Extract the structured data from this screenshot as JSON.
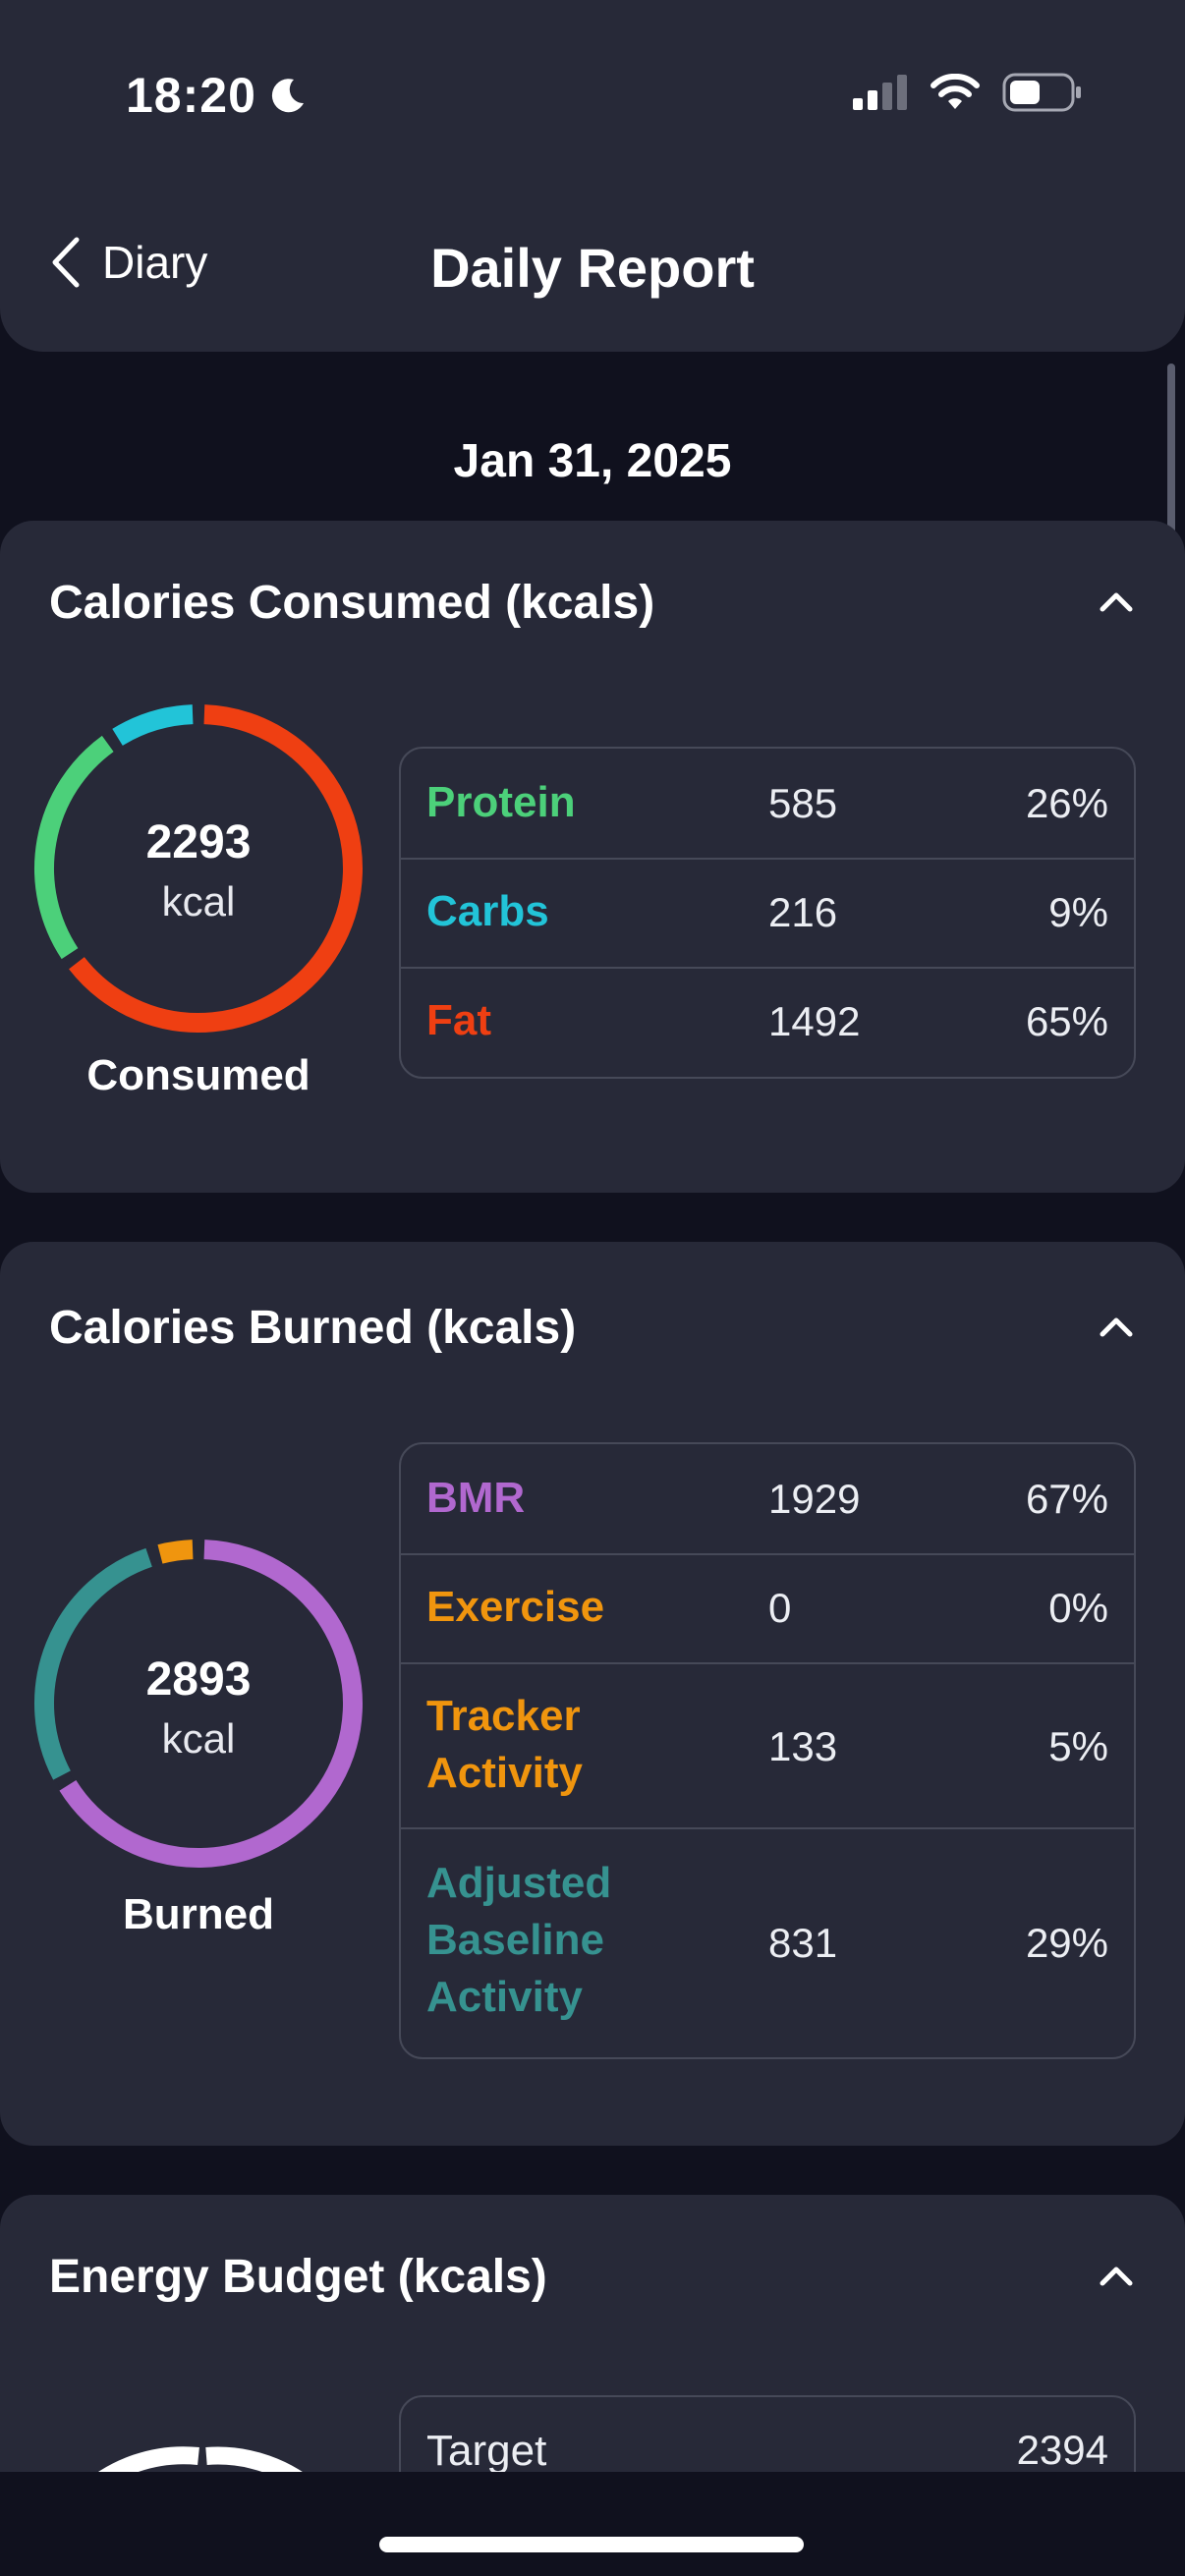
{
  "status_bar": {
    "time": "18:20"
  },
  "header": {
    "back_label": "Diary",
    "title": "Daily Report"
  },
  "date": "Jan 31, 2025",
  "colors": {
    "protein": "#4cd07a",
    "carbs": "#22c4d8",
    "fat": "#ef3f12",
    "bmr": "#b168cf",
    "exercise": "#f0950e",
    "tracker": "#f0950e",
    "adjusted": "#369290",
    "card_bg": "#272938",
    "page_bg": "#10111e"
  },
  "consumed": {
    "title": "Calories Consumed (kcals)",
    "total": "2293",
    "unit": "kcal",
    "caption": "Consumed",
    "rows": [
      {
        "name": "Protein",
        "value": "585",
        "pct": "26%",
        "fraction": 0.255
      },
      {
        "name": "Carbs",
        "value": "216",
        "pct": "9%",
        "fraction": 0.094
      },
      {
        "name": "Fat",
        "value": "1492",
        "pct": "65%",
        "fraction": 0.651
      }
    ]
  },
  "burned": {
    "title": "Calories Burned (kcals)",
    "total": "2893",
    "unit": "kcal",
    "caption": "Burned",
    "rows": [
      {
        "name": "BMR",
        "value": "1929",
        "pct": "67%",
        "fraction": 0.667
      },
      {
        "name": "Exercise",
        "value": "0",
        "pct": "0%",
        "fraction": 0.0
      },
      {
        "name": "Tracker Activity",
        "name_lines": [
          "Tracker",
          "Activity"
        ],
        "value": "133",
        "pct": "5%",
        "fraction": 0.046
      },
      {
        "name": "Adjusted Baseline Activity",
        "name_lines": [
          "Adjusted",
          "Baseline",
          "Activity"
        ],
        "value": "831",
        "pct": "29%",
        "fraction": 0.287
      }
    ]
  },
  "budget": {
    "title": "Energy Budget (kcals)",
    "rows": [
      {
        "name": "Target",
        "value": "2394"
      }
    ]
  }
}
